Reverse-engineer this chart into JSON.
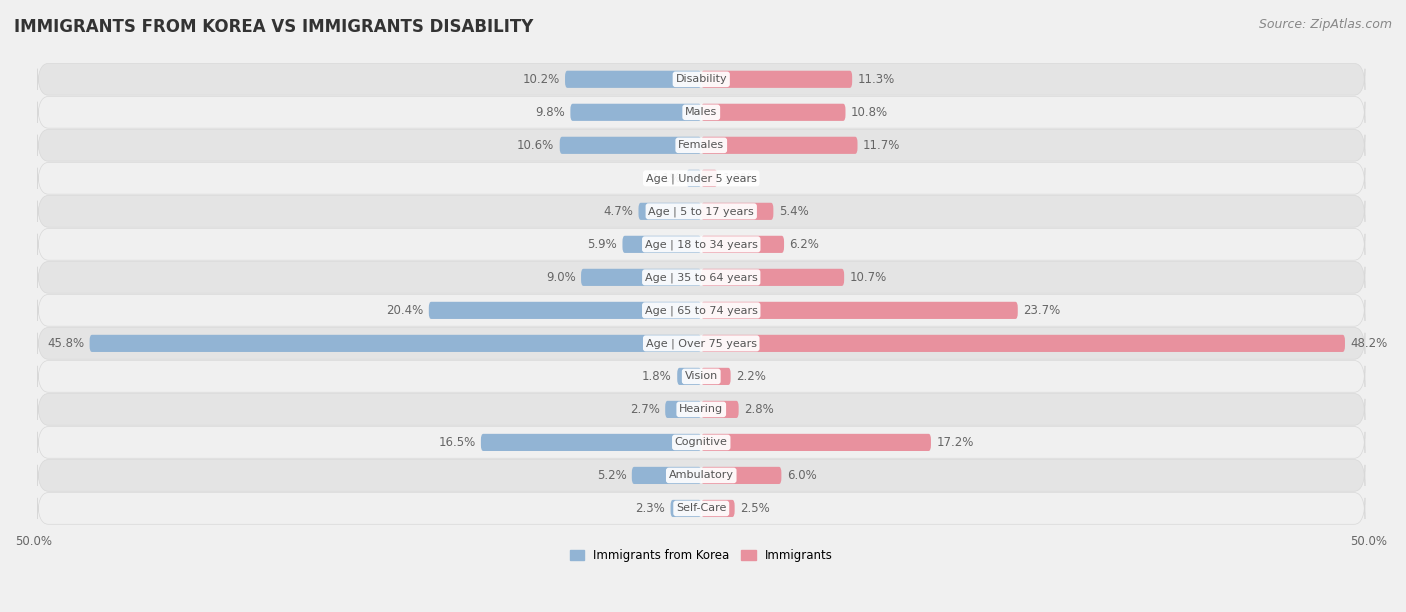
{
  "title": "IMMIGRANTS FROM KOREA VS IMMIGRANTS DISABILITY",
  "source": "Source: ZipAtlas.com",
  "categories": [
    "Disability",
    "Males",
    "Females",
    "Age | Under 5 years",
    "Age | 5 to 17 years",
    "Age | 18 to 34 years",
    "Age | 35 to 64 years",
    "Age | 65 to 74 years",
    "Age | Over 75 years",
    "Vision",
    "Hearing",
    "Cognitive",
    "Ambulatory",
    "Self-Care"
  ],
  "left_values": [
    10.2,
    9.8,
    10.6,
    1.1,
    4.7,
    5.9,
    9.0,
    20.4,
    45.8,
    1.8,
    2.7,
    16.5,
    5.2,
    2.3
  ],
  "right_values": [
    11.3,
    10.8,
    11.7,
    1.2,
    5.4,
    6.2,
    10.7,
    23.7,
    48.2,
    2.2,
    2.8,
    17.2,
    6.0,
    2.5
  ],
  "left_color": "#92b4d4",
  "right_color": "#e8919e",
  "bar_height": 0.52,
  "max_value": 50.0,
  "x_axis_label_left": "50.0%",
  "x_axis_label_right": "50.0%",
  "legend_left": "Immigrants from Korea",
  "legend_right": "Immigrants",
  "title_fontsize": 12,
  "source_fontsize": 9,
  "label_fontsize": 8.5,
  "category_fontsize": 8.0,
  "bg_color": "#f0f0f0",
  "row_color_dark": "#e4e4e4",
  "row_color_light": "#f0f0f0",
  "row_border_color": "#d8d8d8"
}
